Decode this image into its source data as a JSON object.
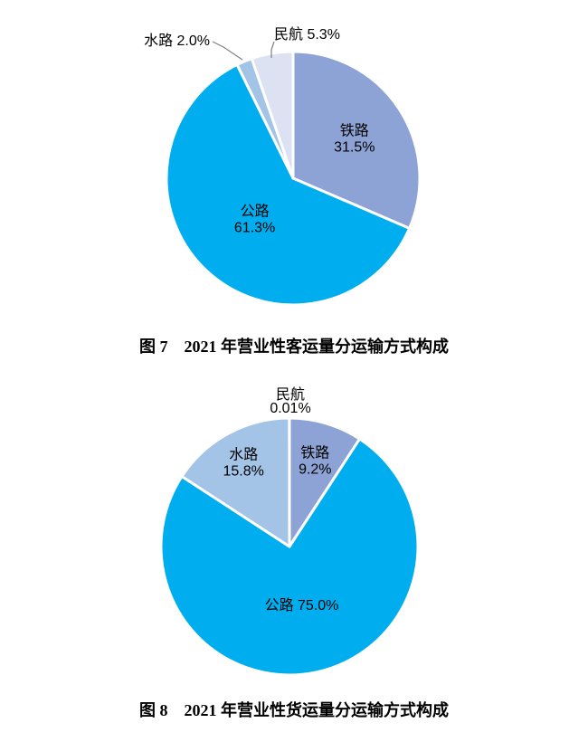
{
  "page": {
    "background_color": "#FFFFFF",
    "text_color": "#000000"
  },
  "figures": [
    {
      "id": "figure-7",
      "caption": "图 7　2021 年营业性客运量分运输方式构成",
      "chart_data": {
        "type": "pie",
        "title": "2021 年营业性客运量分运输方式构成",
        "values_unit": "%",
        "start_angle_deg": 0,
        "direction": "clockwise",
        "slice_border_color": "#FFFFFF",
        "leader_line_color": "#7F7F7F",
        "slices": [
          {
            "label": "铁路",
            "value": 31.5,
            "pct_label": "31.5%",
            "color": "#8EA3D5",
            "label_placement": "inside"
          },
          {
            "label": "公路",
            "value": 61.3,
            "pct_label": "61.3%",
            "color": "#00AEEF",
            "label_placement": "inside"
          },
          {
            "label": "水路",
            "value": 2.0,
            "pct_label": "2.0%",
            "color": "#A3C4E7",
            "label_placement": "outside",
            "label_text": "水路 2.0%",
            "leader_line": true
          },
          {
            "label": "民航",
            "value": 5.3,
            "pct_label": "5.3%",
            "color": "#DCE2F1",
            "label_placement": "outside",
            "label_text": "民航 5.3%",
            "leader_line": true
          }
        ]
      }
    },
    {
      "id": "figure-8",
      "caption": "图 8　2021 年营业性货运量分运输方式构成",
      "chart_data": {
        "type": "pie",
        "title": "2021 年营业性货运量分运输方式构成",
        "values_unit": "%",
        "start_angle_deg": 0,
        "direction": "clockwise",
        "slice_border_color": "#FFFFFF",
        "leader_line_color": "#7F7F7F",
        "slices": [
          {
            "label": "铁路",
            "value": 9.2,
            "pct_label": "9.2%",
            "color": "#8EA3D5",
            "label_placement": "inside"
          },
          {
            "label": "公路",
            "value": 75.0,
            "pct_label": "75.0%",
            "color": "#00AEEF",
            "label_placement": "inside",
            "label_text": "公路 75.0%"
          },
          {
            "label": "水路",
            "value": 15.8,
            "pct_label": "15.8%",
            "color": "#A3C4E7",
            "label_placement": "inside"
          },
          {
            "label": "民航",
            "value": 0.01,
            "pct_label": "0.01%",
            "color": "#DCE2F1",
            "label_placement": "outside"
          }
        ]
      }
    }
  ]
}
